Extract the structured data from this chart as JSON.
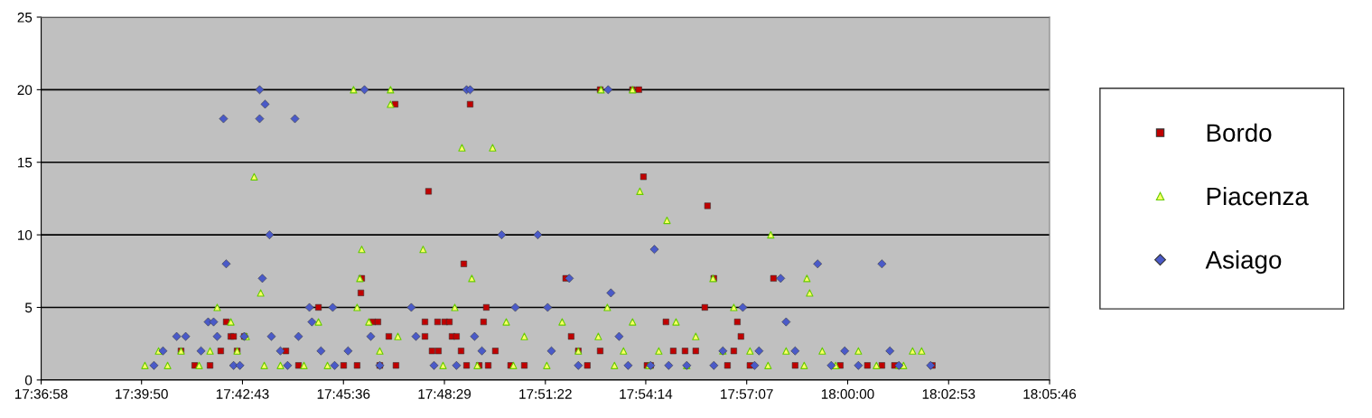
{
  "chart_data": {
    "type": "scatter",
    "xlim": [
      17.61611,
      18.09611
    ],
    "ylim": [
      0,
      25
    ],
    "yticks": [
      0,
      5,
      10,
      15,
      20,
      25
    ],
    "xticks": [
      {
        "value": 17.61611,
        "label": "17:36:58"
      },
      {
        "value": 17.66389,
        "label": "17:39:50"
      },
      {
        "value": 17.71194,
        "label": "17:42:43"
      },
      {
        "value": 17.76,
        "label": "17:45:36"
      },
      {
        "value": 17.80806,
        "label": "17:48:29"
      },
      {
        "value": 17.85611,
        "label": "17:51:22"
      },
      {
        "value": 17.90389,
        "label": "17:54:14"
      },
      {
        "value": 17.95194,
        "label": "17:57:07"
      },
      {
        "value": 18.0,
        "label": "18:00:00"
      },
      {
        "value": 18.04806,
        "label": "18:02:53"
      },
      {
        "value": 18.09611,
        "label": "18:05:46"
      }
    ],
    "grid": "y",
    "legend": "right",
    "series": [
      {
        "name": "Bordo",
        "color": "#c00000",
        "marker": "square",
        "x": [
          17.6827,
          17.6892,
          17.6965,
          17.7016,
          17.7042,
          17.7064,
          17.7077,
          17.7094,
          17.7128,
          17.7326,
          17.7386,
          17.7481,
          17.7601,
          17.7665,
          17.7683,
          17.7687,
          17.7739,
          17.7764,
          17.7773,
          17.7816,
          17.7846,
          17.785,
          17.7988,
          17.8005,
          17.7988,
          17.8022,
          17.8048,
          17.8052,
          17.8082,
          17.8104,
          17.8117,
          17.8138,
          17.816,
          17.8173,
          17.8186,
          17.8203,
          17.8246,
          17.8267,
          17.828,
          17.8289,
          17.8323,
          17.8396,
          17.8461,
          17.8658,
          17.8684,
          17.8718,
          17.8761,
          17.8822,
          17.8822,
          17.8976,
          17.9006,
          17.9028,
          17.9045,
          17.9062,
          17.9135,
          17.917,
          17.9226,
          17.9277,
          17.932,
          17.9333,
          17.9363,
          17.9428,
          17.9458,
          17.9475,
          17.9492,
          17.9535,
          17.9647,
          17.975,
          17.9965,
          18.0094,
          18.0163,
          18.0223,
          18.0403
        ],
        "values": [
          2,
          1,
          1,
          2,
          4,
          3,
          3,
          2,
          3,
          2,
          1,
          5,
          1,
          1,
          6,
          7,
          4,
          4,
          1,
          3,
          19,
          1,
          3,
          13,
          4,
          2,
          4,
          2,
          4,
          4,
          3,
          3,
          2,
          8,
          1,
          19,
          1,
          4,
          5,
          1,
          2,
          1,
          1,
          7,
          3,
          2,
          1,
          2,
          20,
          20,
          20,
          14,
          1,
          1,
          4,
          2,
          2,
          2,
          5,
          12,
          7,
          1,
          2,
          4,
          3,
          1,
          7,
          1,
          1,
          1,
          1,
          1,
          1
        ]
      },
      {
        "name": "Piacenza",
        "color": "#66cc00",
        "marker": "triangle",
        "x": [
          17.6655,
          17.672,
          17.6763,
          17.6827,
          17.6913,
          17.6965,
          17.6999,
          17.7064,
          17.7094,
          17.7137,
          17.7175,
          17.7206,
          17.7223,
          17.73,
          17.7412,
          17.7481,
          17.7524,
          17.7648,
          17.7665,
          17.7678,
          17.7687,
          17.7721,
          17.7773,
          17.7824,
          17.7824,
          17.7859,
          17.7979,
          17.8074,
          17.813,
          17.8164,
          17.8211,
          17.8237,
          17.831,
          17.8375,
          17.8409,
          17.8461,
          17.8568,
          17.8641,
          17.8718,
          17.8826,
          17.8813,
          17.8856,
          17.889,
          17.8933,
          17.8976,
          17.8976,
          17.9011,
          17.9054,
          17.9101,
          17.914,
          17.9183,
          17.9234,
          17.9277,
          17.9406,
          17.9359,
          17.9458,
          17.9535,
          17.9621,
          17.9634,
          17.9707,
          17.9806,
          17.9819,
          17.9793,
          17.9879,
          17.9943,
          18.0051,
          18.0137,
          18.0244,
          18.0309,
          18.0352,
          18.0266
        ],
        "values": [
          1,
          2,
          1,
          2,
          1,
          2,
          5,
          4,
          2,
          3,
          14,
          6,
          1,
          1,
          1,
          4,
          1,
          20,
          5,
          7,
          9,
          4,
          2,
          19,
          20,
          3,
          9,
          1,
          5,
          16,
          7,
          1,
          16,
          4,
          1,
          3,
          1,
          4,
          2,
          20,
          3,
          5,
          1,
          2,
          4,
          20,
          13,
          1,
          2,
          11,
          4,
          1,
          3,
          2,
          7,
          5,
          2,
          1,
          10,
          2,
          7,
          6,
          1,
          2,
          1,
          2,
          1,
          1,
          2,
          2,
          1
        ]
      },
      {
        "name": "Asiago",
        "color": "#4a5ac8",
        "marker": "diamond",
        "x": [
          17.6698,
          17.6741,
          17.6806,
          17.6849,
          17.6922,
          17.6956,
          17.6982,
          17.6999,
          17.7029,
          17.7042,
          17.7077,
          17.7107,
          17.7128,
          17.7201,
          17.7201,
          17.7214,
          17.7227,
          17.7248,
          17.7257,
          17.73,
          17.7334,
          17.7369,
          17.7386,
          17.7438,
          17.745,
          17.7493,
          17.7549,
          17.7558,
          17.7622,
          17.77,
          17.773,
          17.7773,
          17.7923,
          17.7945,
          17.8031,
          17.8138,
          17.8186,
          17.8203,
          17.8224,
          17.8259,
          17.8353,
          17.8418,
          17.8525,
          17.8572,
          17.859,
          17.8675,
          17.8718,
          17.886,
          17.8873,
          17.8912,
          17.8955,
          17.9062,
          17.908,
          17.9148,
          17.9234,
          17.9363,
          17.9406,
          17.9501,
          17.9557,
          17.9578,
          17.9681,
          17.9707,
          17.975,
          17.9857,
          17.9922,
          17.9986,
          18.0051,
          18.0163,
          18.0201,
          18.0244,
          18.0395
        ],
        "values": [
          1,
          2,
          3,
          3,
          2,
          4,
          4,
          3,
          18,
          8,
          1,
          1,
          3,
          20,
          18,
          7,
          19,
          10,
          3,
          2,
          1,
          18,
          3,
          5,
          4,
          2,
          5,
          1,
          2,
          20,
          3,
          1,
          5,
          3,
          1,
          1,
          20,
          20,
          3,
          2,
          10,
          5,
          10,
          5,
          2,
          7,
          1,
          20,
          6,
          3,
          1,
          1,
          9,
          1,
          1,
          1,
          2,
          5,
          1,
          2,
          7,
          4,
          2,
          8,
          1,
          2,
          1,
          8,
          2,
          1,
          1
        ]
      }
    ]
  }
}
